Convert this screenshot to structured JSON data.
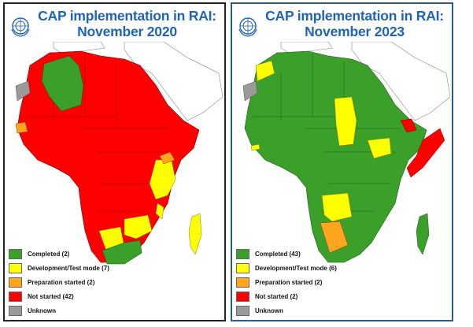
{
  "colors": {
    "completed": "#3aa02a",
    "development": "#ffff00",
    "preparation": "#ffa520",
    "not_started": "#ff0000",
    "unknown": "#9a9a9a",
    "land_outline": "#ffffff",
    "title": "#1f63b4"
  },
  "icons": {
    "emblem": "wmo-emblem-icon"
  },
  "panels": [
    {
      "title_line1": "CAP implementation in RAI:",
      "title_line2": "November 2020",
      "legend": [
        {
          "status": "completed",
          "label": "Completed (2)"
        },
        {
          "status": "development",
          "label": "Development/Test mode (7)"
        },
        {
          "status": "preparation",
          "label": "Preparation started (2)"
        },
        {
          "status": "not_started",
          "label": "Not started (42)"
        },
        {
          "status": "unknown",
          "label": "Unknown"
        }
      ]
    },
    {
      "title_line1": "CAP implementation in RAI:",
      "title_line2": "November 2023",
      "legend": [
        {
          "status": "completed",
          "label": "Completed (43)"
        },
        {
          "status": "development",
          "label": "Development/Test mode (6)"
        },
        {
          "status": "preparation",
          "label": "Preparation started (2)"
        },
        {
          "status": "not_started",
          "label": "Not started (2)"
        },
        {
          "status": "unknown",
          "label": "Unknown"
        }
      ]
    }
  ]
}
